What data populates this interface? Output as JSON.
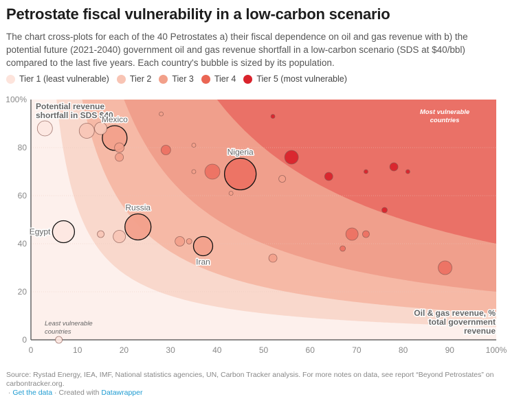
{
  "header": {
    "title": "Petrostate fiscal vulnerability in a low-carbon scenario",
    "description": "The chart cross-plots for each of the 40 Petrostates a) their fiscal dependence on oil and gas revenue with b) the potential future (2021-2040) government oil and gas revenue shortfall in a low-carbon scenario (SDS at $40/bbl) compared to the last five years. Each country's bubble is sized by its population."
  },
  "legend": [
    {
      "label": "Tier 1 (least vulnerable)",
      "color": "#fde4dc"
    },
    {
      "label": "Tier 2",
      "color": "#f8c4b4"
    },
    {
      "label": "Tier 3",
      "color": "#f2a08a"
    },
    {
      "label": "Tier 4",
      "color": "#ea6654"
    },
    {
      "label": "Tier 5 (most vulnerable)",
      "color": "#d9232c"
    }
  ],
  "chart_data": {
    "type": "scatter",
    "title": "Petrostate fiscal vulnerability in a low-carbon scenario",
    "xlabel": "Oil & gas revenue, % total government revenue",
    "ylabel": "Potential revenue shortfall in SDS $40",
    "xlim": [
      0,
      100
    ],
    "ylim": [
      0,
      100
    ],
    "x_ticks": [
      "0",
      "10",
      "20",
      "30",
      "40",
      "50",
      "60",
      "70",
      "80",
      "90",
      "100%"
    ],
    "y_ticks": [
      "0",
      "20",
      "40",
      "60",
      "80",
      "100%"
    ],
    "grid": true,
    "band_colors": [
      "#fdf0ec",
      "#f9d8cc",
      "#f6b9a6",
      "#f09f8c",
      "#ea7167"
    ],
    "band_boundaries_xy_product": [
      550,
      1100,
      2000,
      4000
    ],
    "annotations": {
      "least": "Least vulnerable countries",
      "most": "Most vulnerable countries",
      "least_lines": [
        "Least vulnerable",
        "countries"
      ],
      "most_lines": [
        "Most vulnerable",
        "countries"
      ],
      "ylabel_lines": [
        "Potential revenue",
        "shortfall in SDS $40"
      ],
      "xlabel_lines": [
        "Oil & gas revenue, %",
        "total government",
        "revenue"
      ]
    },
    "points": [
      {
        "x": 3,
        "y": 88,
        "size": 11,
        "tier": 1,
        "label": ""
      },
      {
        "x": 12,
        "y": 87,
        "size": 11,
        "tier": 2,
        "label": ""
      },
      {
        "x": 15,
        "y": 88,
        "size": 9,
        "tier": 2,
        "label": ""
      },
      {
        "x": 18,
        "y": 84,
        "size": 18,
        "tier": 3,
        "label": "Mexico",
        "highlight": true
      },
      {
        "x": 19,
        "y": 80,
        "size": 7,
        "tier": 3,
        "label": ""
      },
      {
        "x": 19,
        "y": 76,
        "size": 6,
        "tier": 3,
        "label": ""
      },
      {
        "x": 28,
        "y": 94,
        "size": 3,
        "tier": 3,
        "label": ""
      },
      {
        "x": 29,
        "y": 79,
        "size": 7,
        "tier": 4,
        "label": ""
      },
      {
        "x": 35,
        "y": 81,
        "size": 3,
        "tier": 3,
        "label": ""
      },
      {
        "x": 35,
        "y": 70,
        "size": 3,
        "tier": 3,
        "label": ""
      },
      {
        "x": 39,
        "y": 70,
        "size": 11,
        "tier": 4,
        "label": ""
      },
      {
        "x": 45,
        "y": 69,
        "size": 23,
        "tier": 4,
        "label": "Nigeria",
        "highlight": true
      },
      {
        "x": 43,
        "y": 61,
        "size": 3,
        "tier": 3,
        "label": ""
      },
      {
        "x": 52,
        "y": 93,
        "size": 3,
        "tier": 5,
        "label": ""
      },
      {
        "x": 54,
        "y": 67,
        "size": 5,
        "tier": 3,
        "label": ""
      },
      {
        "x": 56,
        "y": 76,
        "size": 10,
        "tier": 5,
        "label": ""
      },
      {
        "x": 64,
        "y": 68,
        "size": 6,
        "tier": 5,
        "label": ""
      },
      {
        "x": 72,
        "y": 70,
        "size": 3,
        "tier": 5,
        "label": ""
      },
      {
        "x": 78,
        "y": 72,
        "size": 6,
        "tier": 5,
        "label": ""
      },
      {
        "x": 81,
        "y": 70,
        "size": 3,
        "tier": 5,
        "label": ""
      },
      {
        "x": 76,
        "y": 54,
        "size": 4,
        "tier": 5,
        "label": ""
      },
      {
        "x": 69,
        "y": 44,
        "size": 9,
        "tier": 4,
        "label": ""
      },
      {
        "x": 72,
        "y": 44,
        "size": 5,
        "tier": 4,
        "label": ""
      },
      {
        "x": 67,
        "y": 38,
        "size": 4,
        "tier": 4,
        "label": ""
      },
      {
        "x": 89,
        "y": 30,
        "size": 10,
        "tier": 4,
        "label": ""
      },
      {
        "x": 7,
        "y": 45,
        "size": 16,
        "tier": 1,
        "label": "Egypt",
        "highlight": true
      },
      {
        "x": 15,
        "y": 44,
        "size": 5,
        "tier": 2,
        "label": ""
      },
      {
        "x": 19,
        "y": 43,
        "size": 9,
        "tier": 2,
        "label": ""
      },
      {
        "x": 23,
        "y": 47,
        "size": 19,
        "tier": 3,
        "label": "Russia",
        "highlight": true
      },
      {
        "x": 32,
        "y": 41,
        "size": 7,
        "tier": 3,
        "label": ""
      },
      {
        "x": 34,
        "y": 41,
        "size": 4,
        "tier": 3,
        "label": ""
      },
      {
        "x": 37,
        "y": 39,
        "size": 14,
        "tier": 3,
        "label": "Iran",
        "highlight": true
      },
      {
        "x": 52,
        "y": 34,
        "size": 6,
        "tier": 3,
        "label": ""
      },
      {
        "x": 6,
        "y": 0,
        "size": 5,
        "tier": 1,
        "label": ""
      }
    ]
  },
  "footer": {
    "source": "Source: Rystad Energy, IEA, IMF, National statistics agencies, UN, Carbon Tracker analysis. For more notes on data, see report “Beyond Petrostates” on carbontracker.org.",
    "get_data": "Get the data",
    "created_with": "Created with",
    "datawrapper": "Datawrapper"
  }
}
